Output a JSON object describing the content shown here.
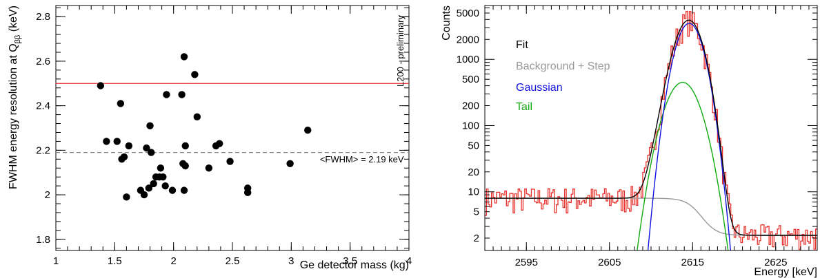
{
  "chart_data": [
    {
      "type": "scatter",
      "xlabel": "Ge detector mass (kg)",
      "ylabel": "FWHM energy resolution at Q",
      "ylabel_sub": "ββ",
      "ylabel_unit": " (keV)",
      "xlim": [
        1,
        4
      ],
      "ylim": [
        1.75,
        2.85
      ],
      "xticks": [
        1,
        1.5,
        2,
        2.5,
        3,
        3.5,
        4
      ],
      "xtick_labels": [
        "1",
        "1.5",
        "2",
        "2.5",
        "3",
        "3.5",
        "4"
      ],
      "yticks": [
        1.8,
        2,
        2.2,
        2.4,
        2.6,
        2.8
      ],
      "ytick_labels": [
        "1.8",
        "2",
        "2.2",
        "2.4",
        "2.6",
        "2.8"
      ],
      "grid": false,
      "annotation": "L200 - preliminary",
      "mean_label": "<FWHM> = 2.19 keV",
      "reference_lines": [
        {
          "y": 2.5,
          "color": "#e8302a",
          "style": "solid"
        },
        {
          "y": 2.19,
          "color": "#888888",
          "style": "dashed"
        }
      ],
      "points": [
        {
          "x": 1.38,
          "y": 2.49
        },
        {
          "x": 1.43,
          "y": 2.24
        },
        {
          "x": 1.52,
          "y": 2.24
        },
        {
          "x": 1.55,
          "y": 2.41
        },
        {
          "x": 1.56,
          "y": 2.16
        },
        {
          "x": 1.58,
          "y": 2.17
        },
        {
          "x": 1.6,
          "y": 1.99
        },
        {
          "x": 1.62,
          "y": 2.22
        },
        {
          "x": 1.72,
          "y": 2.02
        },
        {
          "x": 1.75,
          "y": 2.0
        },
        {
          "x": 1.77,
          "y": 2.21
        },
        {
          "x": 1.79,
          "y": 2.03
        },
        {
          "x": 1.8,
          "y": 2.31
        },
        {
          "x": 1.81,
          "y": 2.19
        },
        {
          "x": 1.83,
          "y": 2.05
        },
        {
          "x": 1.85,
          "y": 2.08
        },
        {
          "x": 1.88,
          "y": 2.08
        },
        {
          "x": 1.89,
          "y": 2.12
        },
        {
          "x": 1.91,
          "y": 2.08
        },
        {
          "x": 1.93,
          "y": 2.04
        },
        {
          "x": 1.94,
          "y": 2.45
        },
        {
          "x": 1.99,
          "y": 2.02
        },
        {
          "x": 2.07,
          "y": 2.45
        },
        {
          "x": 2.08,
          "y": 2.14
        },
        {
          "x": 2.09,
          "y": 2.02
        },
        {
          "x": 2.09,
          "y": 2.62
        },
        {
          "x": 2.1,
          "y": 2.22
        },
        {
          "x": 2.1,
          "y": 2.13
        },
        {
          "x": 2.18,
          "y": 2.54
        },
        {
          "x": 2.2,
          "y": 2.35
        },
        {
          "x": 2.3,
          "y": 2.12
        },
        {
          "x": 2.36,
          "y": 2.22
        },
        {
          "x": 2.39,
          "y": 2.23
        },
        {
          "x": 2.48,
          "y": 2.15
        },
        {
          "x": 2.63,
          "y": 2.03
        },
        {
          "x": 2.63,
          "y": 2.01
        },
        {
          "x": 2.99,
          "y": 2.14
        },
        {
          "x": 3.14,
          "y": 2.29
        }
      ]
    },
    {
      "type": "line",
      "xlabel": "Energy [keV]",
      "ylabel": "Counts",
      "xlim": [
        2590,
        2630
      ],
      "ylim": [
        1.3,
        6500
      ],
      "yscale": "log",
      "xticks": [
        2595,
        2605,
        2615,
        2625
      ],
      "xtick_labels": [
        "2595",
        "2605",
        "2615",
        "2625"
      ],
      "yticks": [
        2,
        5,
        10,
        20,
        50,
        100,
        200,
        500,
        1000,
        2000,
        5000
      ],
      "ytick_labels": [
        "2",
        "5",
        "10",
        "20",
        "50",
        "100",
        "200",
        "500",
        "1000",
        "2000",
        "5000"
      ],
      "grid": false,
      "legend_placement": "top-left",
      "legend": [
        {
          "name": "Fit",
          "color": "#000000"
        },
        {
          "name": "Background + Step",
          "color": "#999999"
        },
        {
          "name": "Gaussian",
          "color": "#1111dd"
        },
        {
          "name": "Tail",
          "color": "#11aa11"
        }
      ],
      "model": {
        "peak_mean": 2614.6,
        "peak_sigma": 1.25,
        "peak_amplitude": 3500,
        "tail_mean": 2613.8,
        "tail_sigma": 1.6,
        "tail_amplitude": 450,
        "background_low": 8,
        "background_high": 2.2,
        "step_center": 2615.5,
        "step_width": 0.9
      },
      "histogram_color": "#e8302a"
    }
  ]
}
